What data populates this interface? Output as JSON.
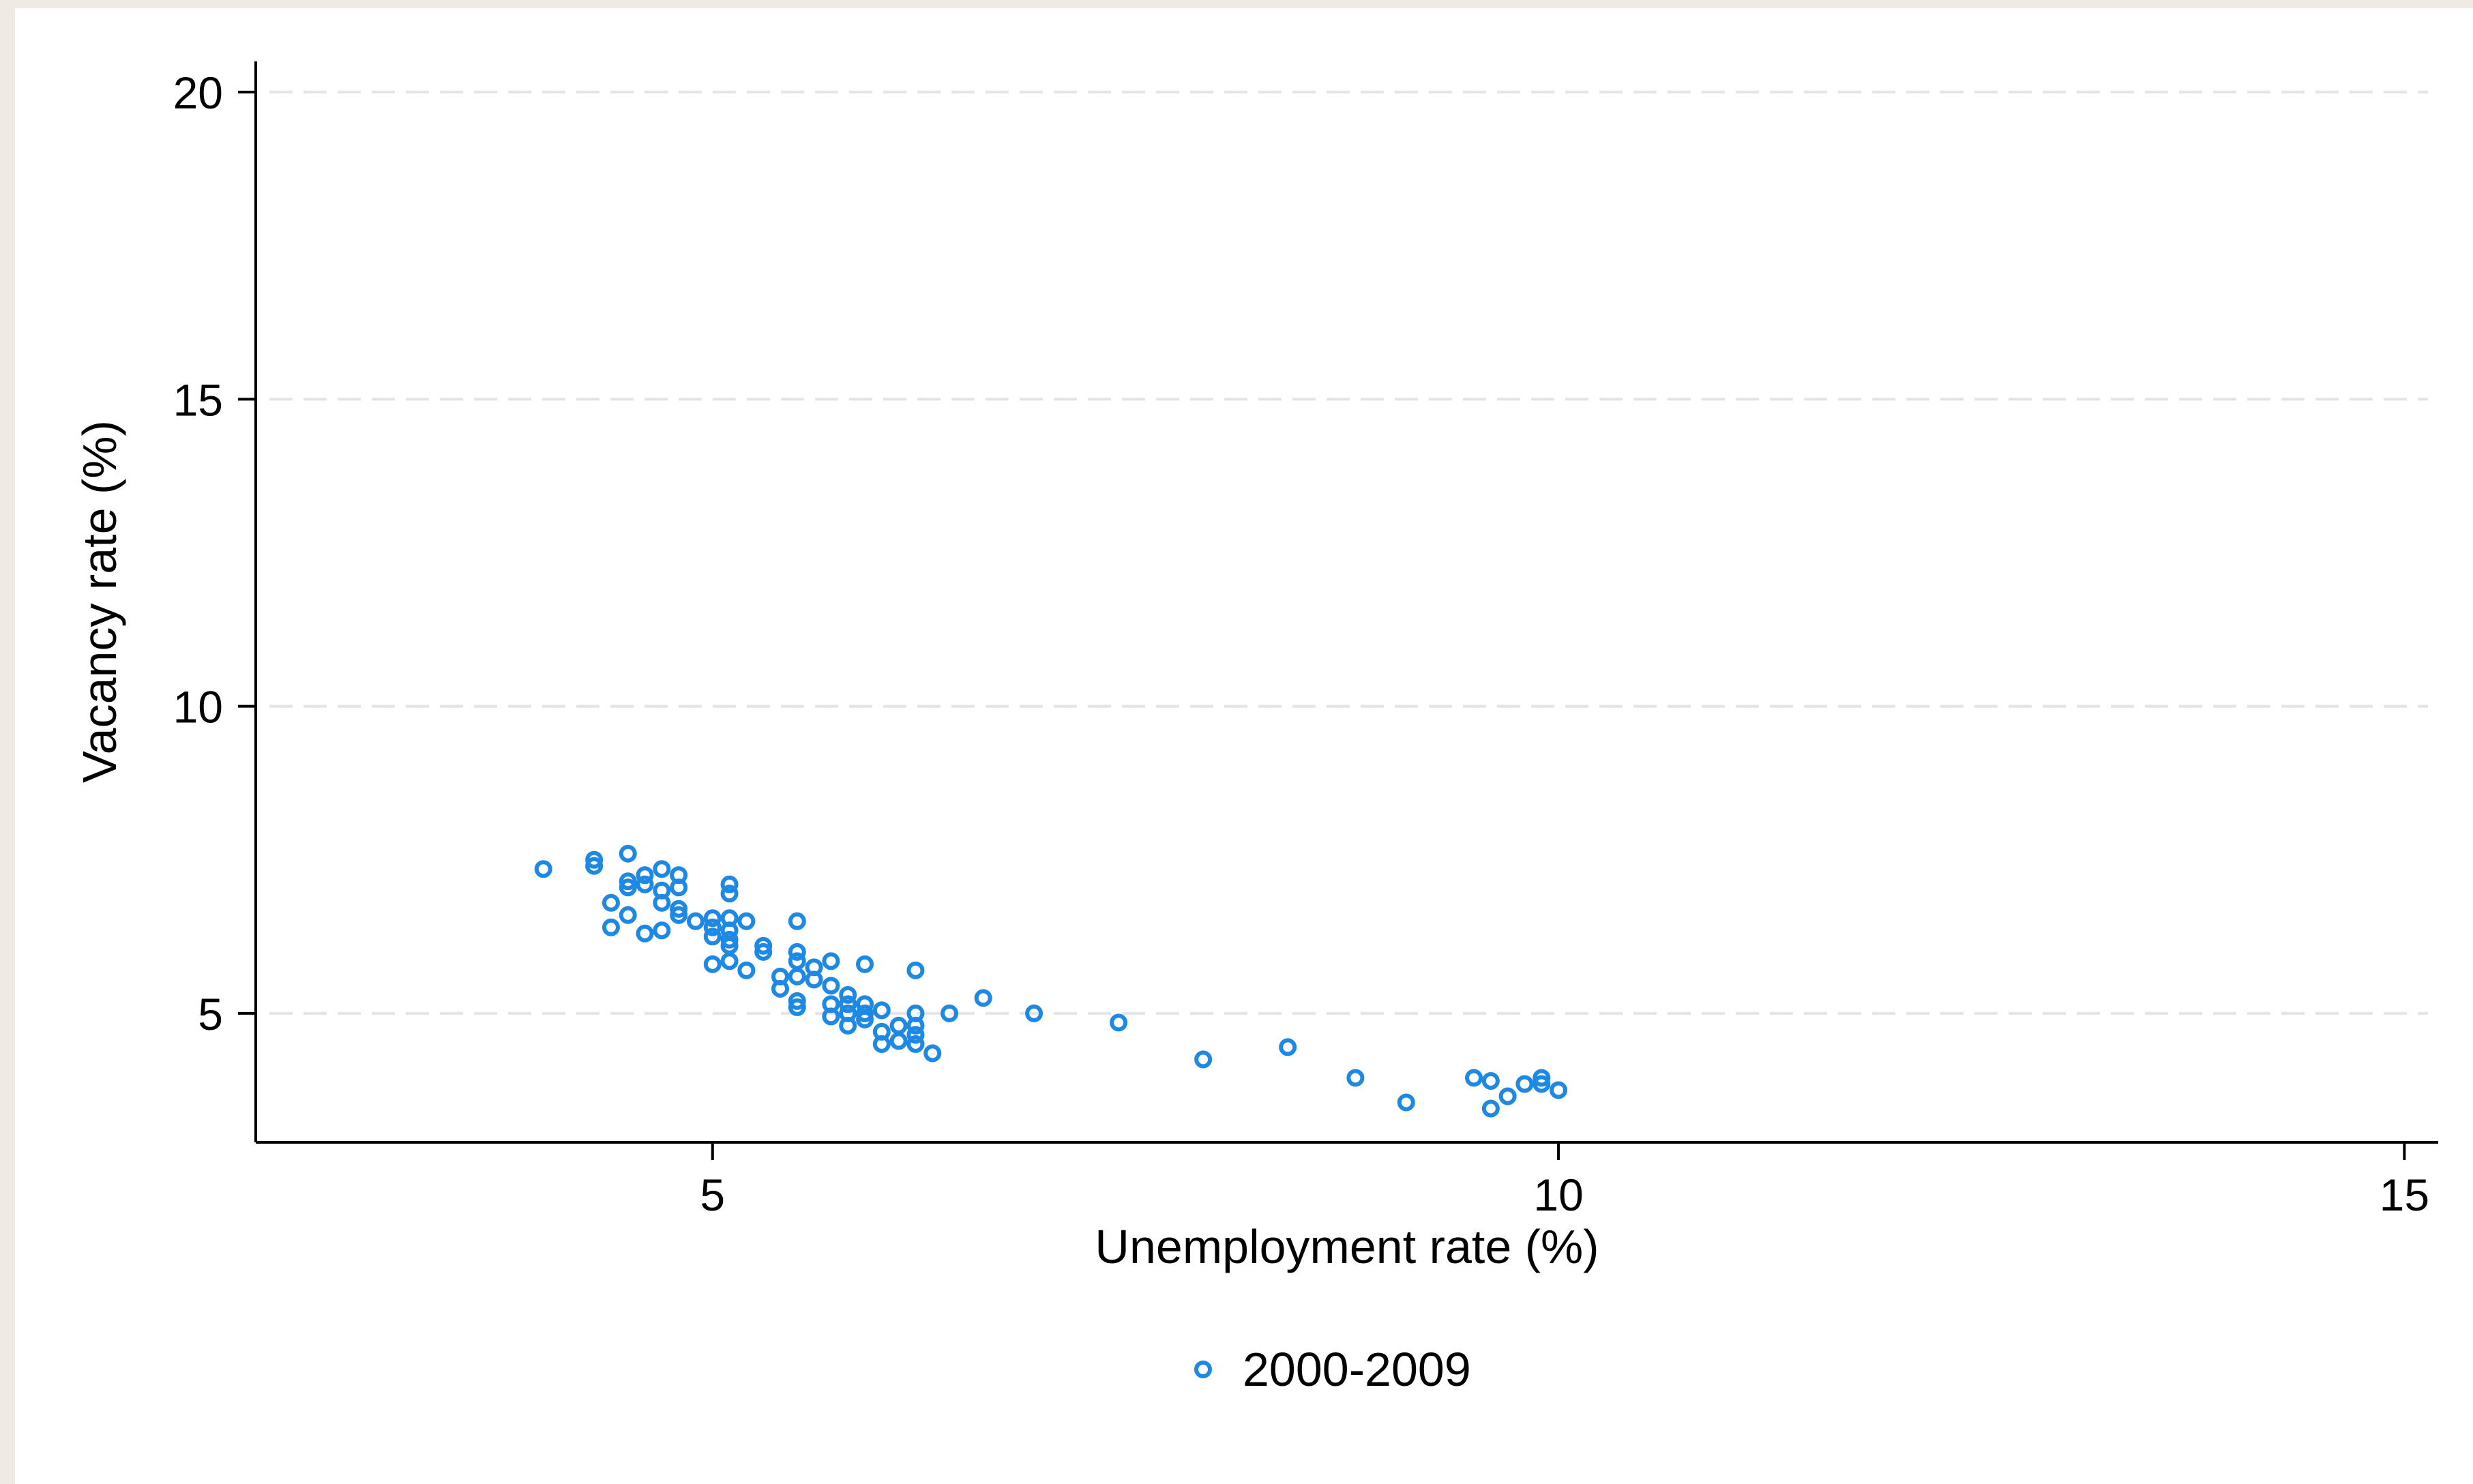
{
  "chart_data": {
    "type": "scatter",
    "xlabel": "Unemployment rate (%)",
    "ylabel": "Vacancy rate (%)",
    "xlim": [
      2.3,
      15.2
    ],
    "ylim": [
      2.9,
      20.5
    ],
    "xticks": [
      5,
      10,
      15
    ],
    "yticks": [
      5,
      10,
      15,
      20
    ],
    "grid": "horizontal dashed",
    "legend_position": "bottom-center",
    "series": [
      {
        "name": "2000-2009",
        "color": "#1e88e5",
        "marker": "hollow-circle",
        "points": [
          [
            4.0,
            7.35
          ],
          [
            4.3,
            7.5
          ],
          [
            4.3,
            7.4
          ],
          [
            4.4,
            6.8
          ],
          [
            4.4,
            6.4
          ],
          [
            4.5,
            7.6
          ],
          [
            4.5,
            7.15
          ],
          [
            4.5,
            7.05
          ],
          [
            4.5,
            6.6
          ],
          [
            4.6,
            7.25
          ],
          [
            4.6,
            7.1
          ],
          [
            4.6,
            6.3
          ],
          [
            4.7,
            7.35
          ],
          [
            4.7,
            7.0
          ],
          [
            4.7,
            6.8
          ],
          [
            4.7,
            6.35
          ],
          [
            4.8,
            7.25
          ],
          [
            4.8,
            7.05
          ],
          [
            4.8,
            6.7
          ],
          [
            4.8,
            6.6
          ],
          [
            4.9,
            6.5
          ],
          [
            5.0,
            6.55
          ],
          [
            5.0,
            6.4
          ],
          [
            5.0,
            6.25
          ],
          [
            5.0,
            5.8
          ],
          [
            5.1,
            7.1
          ],
          [
            5.1,
            6.95
          ],
          [
            5.1,
            6.55
          ],
          [
            5.1,
            6.35
          ],
          [
            5.1,
            6.2
          ],
          [
            5.1,
            6.1
          ],
          [
            5.1,
            5.85
          ],
          [
            5.2,
            6.5
          ],
          [
            5.2,
            5.7
          ],
          [
            5.3,
            6.1
          ],
          [
            5.3,
            6.0
          ],
          [
            5.4,
            5.6
          ],
          [
            5.4,
            5.4
          ],
          [
            5.5,
            6.5
          ],
          [
            5.5,
            6.0
          ],
          [
            5.5,
            5.85
          ],
          [
            5.5,
            5.6
          ],
          [
            5.5,
            5.2
          ],
          [
            5.5,
            5.1
          ],
          [
            5.6,
            5.75
          ],
          [
            5.6,
            5.55
          ],
          [
            5.7,
            5.85
          ],
          [
            5.7,
            5.45
          ],
          [
            5.7,
            5.15
          ],
          [
            5.7,
            4.95
          ],
          [
            5.8,
            5.3
          ],
          [
            5.8,
            5.15
          ],
          [
            5.8,
            5.0
          ],
          [
            5.8,
            4.8
          ],
          [
            5.9,
            5.8
          ],
          [
            5.9,
            5.15
          ],
          [
            5.9,
            5.0
          ],
          [
            5.9,
            4.9
          ],
          [
            6.0,
            5.05
          ],
          [
            6.0,
            4.7
          ],
          [
            6.0,
            4.5
          ],
          [
            6.1,
            4.8
          ],
          [
            6.1,
            4.55
          ],
          [
            6.2,
            5.7
          ],
          [
            6.2,
            5.0
          ],
          [
            6.2,
            4.8
          ],
          [
            6.2,
            4.65
          ],
          [
            6.2,
            4.5
          ],
          [
            6.3,
            4.35
          ],
          [
            6.4,
            5.0
          ],
          [
            6.6,
            5.25
          ],
          [
            6.9,
            5.0
          ],
          [
            7.4,
            4.85
          ],
          [
            7.9,
            4.25
          ],
          [
            8.4,
            4.45
          ],
          [
            8.8,
            3.95
          ],
          [
            9.1,
            3.55
          ],
          [
            9.5,
            3.95
          ],
          [
            9.6,
            3.9
          ],
          [
            9.6,
            3.45
          ],
          [
            9.7,
            3.65
          ],
          [
            9.8,
            3.85
          ],
          [
            9.9,
            3.95
          ],
          [
            9.9,
            3.85
          ],
          [
            10.0,
            3.75
          ]
        ]
      }
    ]
  }
}
